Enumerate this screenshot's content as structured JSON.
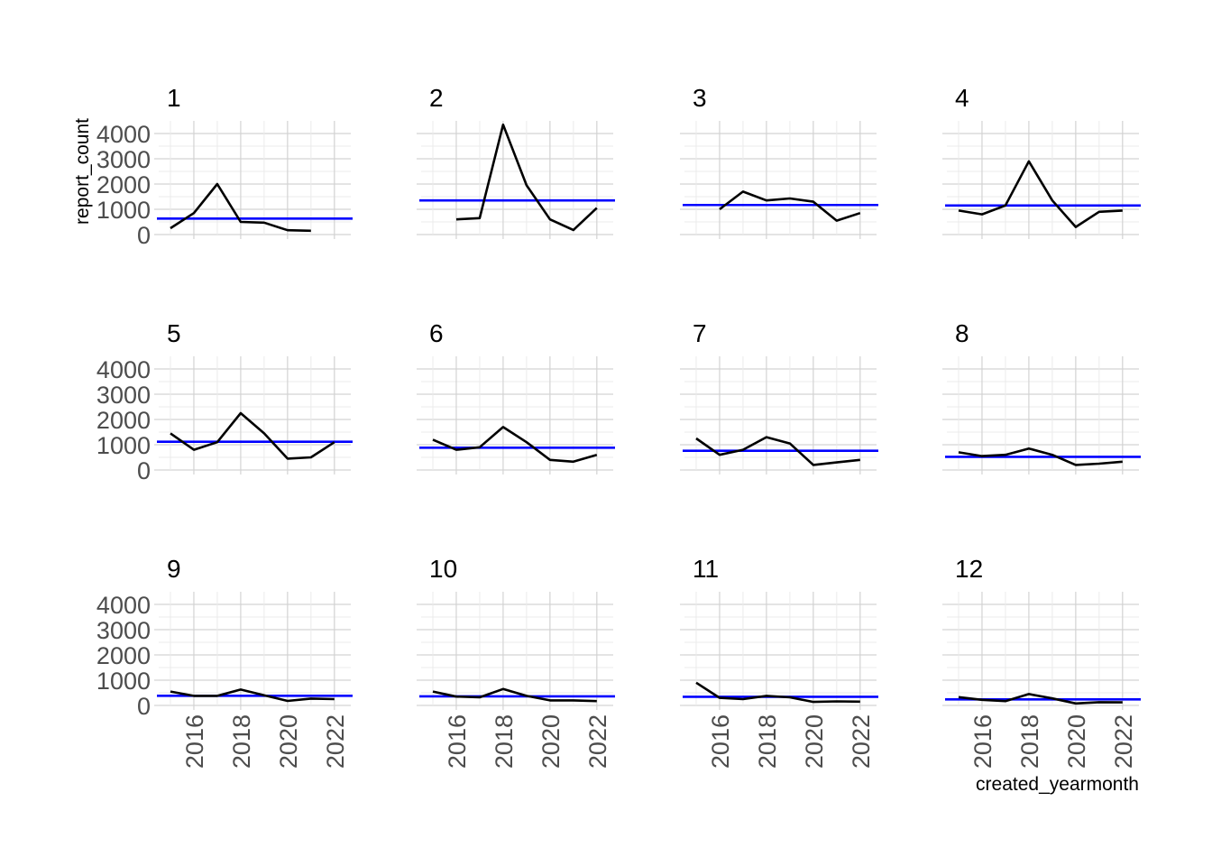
{
  "chart_data": {
    "type": "line",
    "x_label": "created_yearmonth",
    "y_label": "report_count",
    "y_range": [
      0,
      4500
    ],
    "y_ticks": [
      0,
      1000,
      2000,
      3000,
      4000
    ],
    "x_range": [
      2014.5,
      2022.7
    ],
    "x_ticks": [
      2016,
      2018,
      2020,
      2022
    ],
    "grid": true,
    "line_color": "#000000",
    "reference_line_color": "#0000ff",
    "facets": [
      {
        "label": "1",
        "reference": 630,
        "points": [
          [
            2015,
            250
          ],
          [
            2016,
            850
          ],
          [
            2017,
            2000
          ],
          [
            2018,
            500
          ],
          [
            2019,
            470
          ],
          [
            2020,
            170
          ],
          [
            2021,
            150
          ]
        ]
      },
      {
        "label": "2",
        "reference": 1350,
        "points": [
          [
            2016,
            600
          ],
          [
            2017,
            650
          ],
          [
            2018,
            4350
          ],
          [
            2019,
            1950
          ],
          [
            2020,
            600
          ],
          [
            2021,
            180
          ],
          [
            2022,
            1050
          ]
        ]
      },
      {
        "label": "3",
        "reference": 1170,
        "points": [
          [
            2016,
            1000
          ],
          [
            2017,
            1700
          ],
          [
            2018,
            1350
          ],
          [
            2019,
            1430
          ],
          [
            2020,
            1300
          ],
          [
            2021,
            550
          ],
          [
            2022,
            850
          ]
        ]
      },
      {
        "label": "4",
        "reference": 1150,
        "points": [
          [
            2015,
            950
          ],
          [
            2016,
            800
          ],
          [
            2017,
            1150
          ],
          [
            2018,
            2900
          ],
          [
            2019,
            1350
          ],
          [
            2020,
            300
          ],
          [
            2021,
            900
          ],
          [
            2022,
            950
          ]
        ]
      },
      {
        "label": "5",
        "reference": 1120,
        "points": [
          [
            2015,
            1450
          ],
          [
            2016,
            800
          ],
          [
            2017,
            1100
          ],
          [
            2018,
            2250
          ],
          [
            2019,
            1450
          ],
          [
            2020,
            450
          ],
          [
            2021,
            500
          ],
          [
            2022,
            1100
          ]
        ]
      },
      {
        "label": "6",
        "reference": 880,
        "points": [
          [
            2015,
            1200
          ],
          [
            2016,
            800
          ],
          [
            2017,
            900
          ],
          [
            2018,
            1700
          ],
          [
            2019,
            1100
          ],
          [
            2020,
            400
          ],
          [
            2021,
            330
          ],
          [
            2022,
            600
          ]
        ]
      },
      {
        "label": "7",
        "reference": 760,
        "points": [
          [
            2015,
            1250
          ],
          [
            2016,
            600
          ],
          [
            2017,
            800
          ],
          [
            2018,
            1300
          ],
          [
            2019,
            1050
          ],
          [
            2020,
            200
          ],
          [
            2021,
            300
          ],
          [
            2022,
            400
          ]
        ]
      },
      {
        "label": "8",
        "reference": 520,
        "points": [
          [
            2015,
            700
          ],
          [
            2016,
            550
          ],
          [
            2017,
            600
          ],
          [
            2018,
            850
          ],
          [
            2019,
            600
          ],
          [
            2020,
            200
          ],
          [
            2021,
            250
          ],
          [
            2022,
            330
          ]
        ]
      },
      {
        "label": "9",
        "reference": 380,
        "points": [
          [
            2015,
            550
          ],
          [
            2016,
            380
          ],
          [
            2017,
            380
          ],
          [
            2018,
            630
          ],
          [
            2019,
            400
          ],
          [
            2020,
            180
          ],
          [
            2021,
            270
          ],
          [
            2022,
            250
          ]
        ]
      },
      {
        "label": "10",
        "reference": 360,
        "points": [
          [
            2015,
            550
          ],
          [
            2016,
            350
          ],
          [
            2017,
            320
          ],
          [
            2018,
            650
          ],
          [
            2019,
            380
          ],
          [
            2020,
            200
          ],
          [
            2021,
            200
          ],
          [
            2022,
            170
          ]
        ]
      },
      {
        "label": "11",
        "reference": 340,
        "points": [
          [
            2015,
            900
          ],
          [
            2016,
            300
          ],
          [
            2017,
            250
          ],
          [
            2018,
            380
          ],
          [
            2019,
            320
          ],
          [
            2020,
            140
          ],
          [
            2021,
            160
          ],
          [
            2022,
            150
          ]
        ]
      },
      {
        "label": "12",
        "reference": 240,
        "points": [
          [
            2015,
            330
          ],
          [
            2016,
            220
          ],
          [
            2017,
            170
          ],
          [
            2018,
            450
          ],
          [
            2019,
            280
          ],
          [
            2020,
            80
          ],
          [
            2021,
            130
          ],
          [
            2022,
            120
          ]
        ]
      }
    ]
  }
}
